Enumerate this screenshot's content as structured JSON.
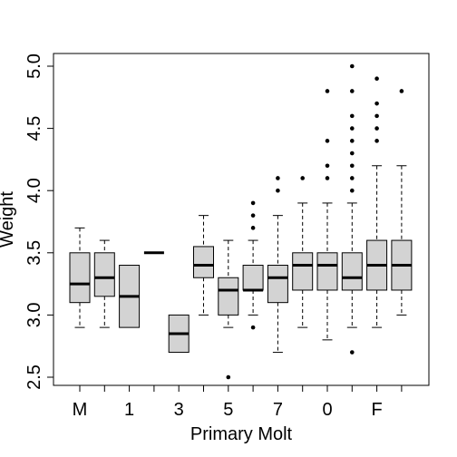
{
  "chart_data": {
    "type": "box",
    "xlabel": "Primary Molt",
    "ylabel": "Weight",
    "ylim": [
      2.5,
      5.0
    ],
    "yticks": [
      2.5,
      3.0,
      3.5,
      4.0,
      4.5,
      5.0
    ],
    "ytick_labels": [
      "2.5",
      "3.0",
      "3.5",
      "4.0",
      "4.5",
      "5.0"
    ],
    "xtick_labels": [
      "M",
      "1",
      "3",
      "5",
      "7",
      "0",
      "F"
    ],
    "xtick_positions": [
      1,
      3,
      5,
      7,
      9,
      11,
      13
    ],
    "box_fill": "#d3d3d3",
    "grid": false,
    "boxes": [
      {
        "pos": 1,
        "whisker_low": 2.9,
        "q1": 3.1,
        "median": 3.25,
        "q3": 3.5,
        "whisker_high": 3.7,
        "outliers": []
      },
      {
        "pos": 2,
        "whisker_low": 2.9,
        "q1": 3.15,
        "median": 3.3,
        "q3": 3.5,
        "whisker_high": 3.6,
        "outliers": []
      },
      {
        "pos": 3,
        "whisker_low": 2.9,
        "q1": 2.9,
        "median": 3.15,
        "q3": 3.4,
        "whisker_high": 3.4,
        "outliers": []
      },
      {
        "pos": 4,
        "whisker_low": 3.5,
        "q1": 3.5,
        "median": 3.5,
        "q3": 3.5,
        "whisker_high": 3.5,
        "outliers": []
      },
      {
        "pos": 5,
        "whisker_low": 2.7,
        "q1": 2.7,
        "median": 2.85,
        "q3": 3.0,
        "whisker_high": 3.0,
        "outliers": []
      },
      {
        "pos": 6,
        "whisker_low": 3.0,
        "q1": 3.3,
        "median": 3.4,
        "q3": 3.55,
        "whisker_high": 3.8,
        "outliers": []
      },
      {
        "pos": 7,
        "whisker_low": 2.9,
        "q1": 3.0,
        "median": 3.2,
        "q3": 3.3,
        "whisker_high": 3.6,
        "outliers": [
          2.5
        ]
      },
      {
        "pos": 8,
        "whisker_low": 3.0,
        "q1": 3.2,
        "median": 3.2,
        "q3": 3.4,
        "whisker_high": 3.6,
        "outliers": [
          2.9,
          3.7,
          3.8,
          3.9
        ]
      },
      {
        "pos": 9,
        "whisker_low": 2.7,
        "q1": 3.1,
        "median": 3.3,
        "q3": 3.4,
        "whisker_high": 3.8,
        "outliers": [
          4.0,
          4.1
        ]
      },
      {
        "pos": 10,
        "whisker_low": 2.9,
        "q1": 3.2,
        "median": 3.4,
        "q3": 3.5,
        "whisker_high": 3.9,
        "outliers": [
          4.1
        ]
      },
      {
        "pos": 11,
        "whisker_low": 2.8,
        "q1": 3.2,
        "median": 3.4,
        "q3": 3.5,
        "whisker_high": 3.9,
        "outliers": [
          4.1,
          4.2,
          4.4,
          4.8
        ]
      },
      {
        "pos": 12,
        "whisker_low": 2.9,
        "q1": 3.2,
        "median": 3.3,
        "q3": 3.5,
        "whisker_high": 3.9,
        "outliers": [
          2.7,
          4.0,
          4.1,
          4.2,
          4.3,
          4.4,
          4.5,
          4.6,
          4.8,
          5.0
        ]
      },
      {
        "pos": 13,
        "whisker_low": 2.9,
        "q1": 3.2,
        "median": 3.4,
        "q3": 3.6,
        "whisker_high": 4.2,
        "outliers": [
          4.4,
          4.5,
          4.6,
          4.7,
          4.9
        ]
      },
      {
        "pos": 14,
        "whisker_low": 3.0,
        "q1": 3.2,
        "median": 3.4,
        "q3": 3.6,
        "whisker_high": 4.2,
        "outliers": [
          4.8
        ]
      }
    ]
  }
}
